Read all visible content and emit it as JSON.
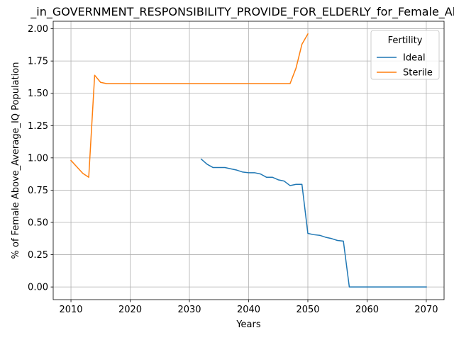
{
  "chart_data": {
    "type": "line",
    "title": "_in_GOVERNMENT_RESPONSIBILITY_PROVIDE_FOR_ELDERLY_for_Female_Abo",
    "xlabel": "Years",
    "ylabel": "% of Female Above_Average_IQ Population",
    "xlim": [
      2007,
      2073
    ],
    "ylim": [
      -0.098,
      2.058
    ],
    "xticks": [
      2010,
      2020,
      2030,
      2040,
      2050,
      2060,
      2070
    ],
    "yticks": [
      0.0,
      0.25,
      0.5,
      0.75,
      1.0,
      1.25,
      1.5,
      1.75,
      2.0
    ],
    "xtick_labels": [
      "2010",
      "2020",
      "2030",
      "2040",
      "2050",
      "2060",
      "2070"
    ],
    "ytick_labels": [
      "0.00",
      "0.25",
      "0.50",
      "0.75",
      "1.00",
      "1.25",
      "1.50",
      "1.75",
      "2.00"
    ],
    "grid": true,
    "legend": {
      "title": "Fertility",
      "placement": "top-right"
    },
    "series": [
      {
        "name": "Ideal",
        "color": "#1f77b4",
        "x": [
          2032,
          2033,
          2034,
          2035,
          2036,
          2037,
          2038,
          2039,
          2040,
          2041,
          2042,
          2043,
          2044,
          2045,
          2046,
          2047,
          2048,
          2049,
          2050,
          2051,
          2052,
          2053,
          2054,
          2055,
          2056,
          2057,
          2058,
          2059,
          2060,
          2061,
          2062,
          2063,
          2064,
          2065,
          2066,
          2067,
          2068,
          2069,
          2070
        ],
        "y": [
          0.99,
          0.95,
          0.925,
          0.925,
          0.925,
          0.915,
          0.905,
          0.89,
          0.885,
          0.885,
          0.875,
          0.85,
          0.85,
          0.83,
          0.82,
          0.785,
          0.795,
          0.795,
          0.415,
          0.405,
          0.4,
          0.385,
          0.375,
          0.36,
          0.355,
          0.0,
          0.0,
          0.0,
          0.0,
          0.0,
          0.0,
          0.0,
          0.0,
          0.0,
          0.0,
          0.0,
          0.0,
          0.0,
          0.0
        ]
      },
      {
        "name": "Sterile",
        "color": "#ff7f0e",
        "x": [
          2010,
          2011,
          2012,
          2013,
          2014,
          2015,
          2016,
          2017,
          2018,
          2019,
          2020,
          2021,
          2022,
          2023,
          2024,
          2025,
          2026,
          2027,
          2028,
          2029,
          2030,
          2031,
          2032,
          2033,
          2034,
          2035,
          2036,
          2037,
          2038,
          2039,
          2040,
          2041,
          2042,
          2043,
          2044,
          2045,
          2046,
          2047,
          2048,
          2049,
          2050
        ],
        "y": [
          0.98,
          0.93,
          0.88,
          0.85,
          1.64,
          1.585,
          1.575,
          1.575,
          1.575,
          1.575,
          1.575,
          1.575,
          1.575,
          1.575,
          1.575,
          1.575,
          1.575,
          1.575,
          1.575,
          1.575,
          1.575,
          1.575,
          1.575,
          1.575,
          1.575,
          1.575,
          1.575,
          1.575,
          1.575,
          1.575,
          1.575,
          1.575,
          1.575,
          1.575,
          1.575,
          1.575,
          1.575,
          1.575,
          1.695,
          1.88,
          1.96
        ]
      }
    ]
  }
}
